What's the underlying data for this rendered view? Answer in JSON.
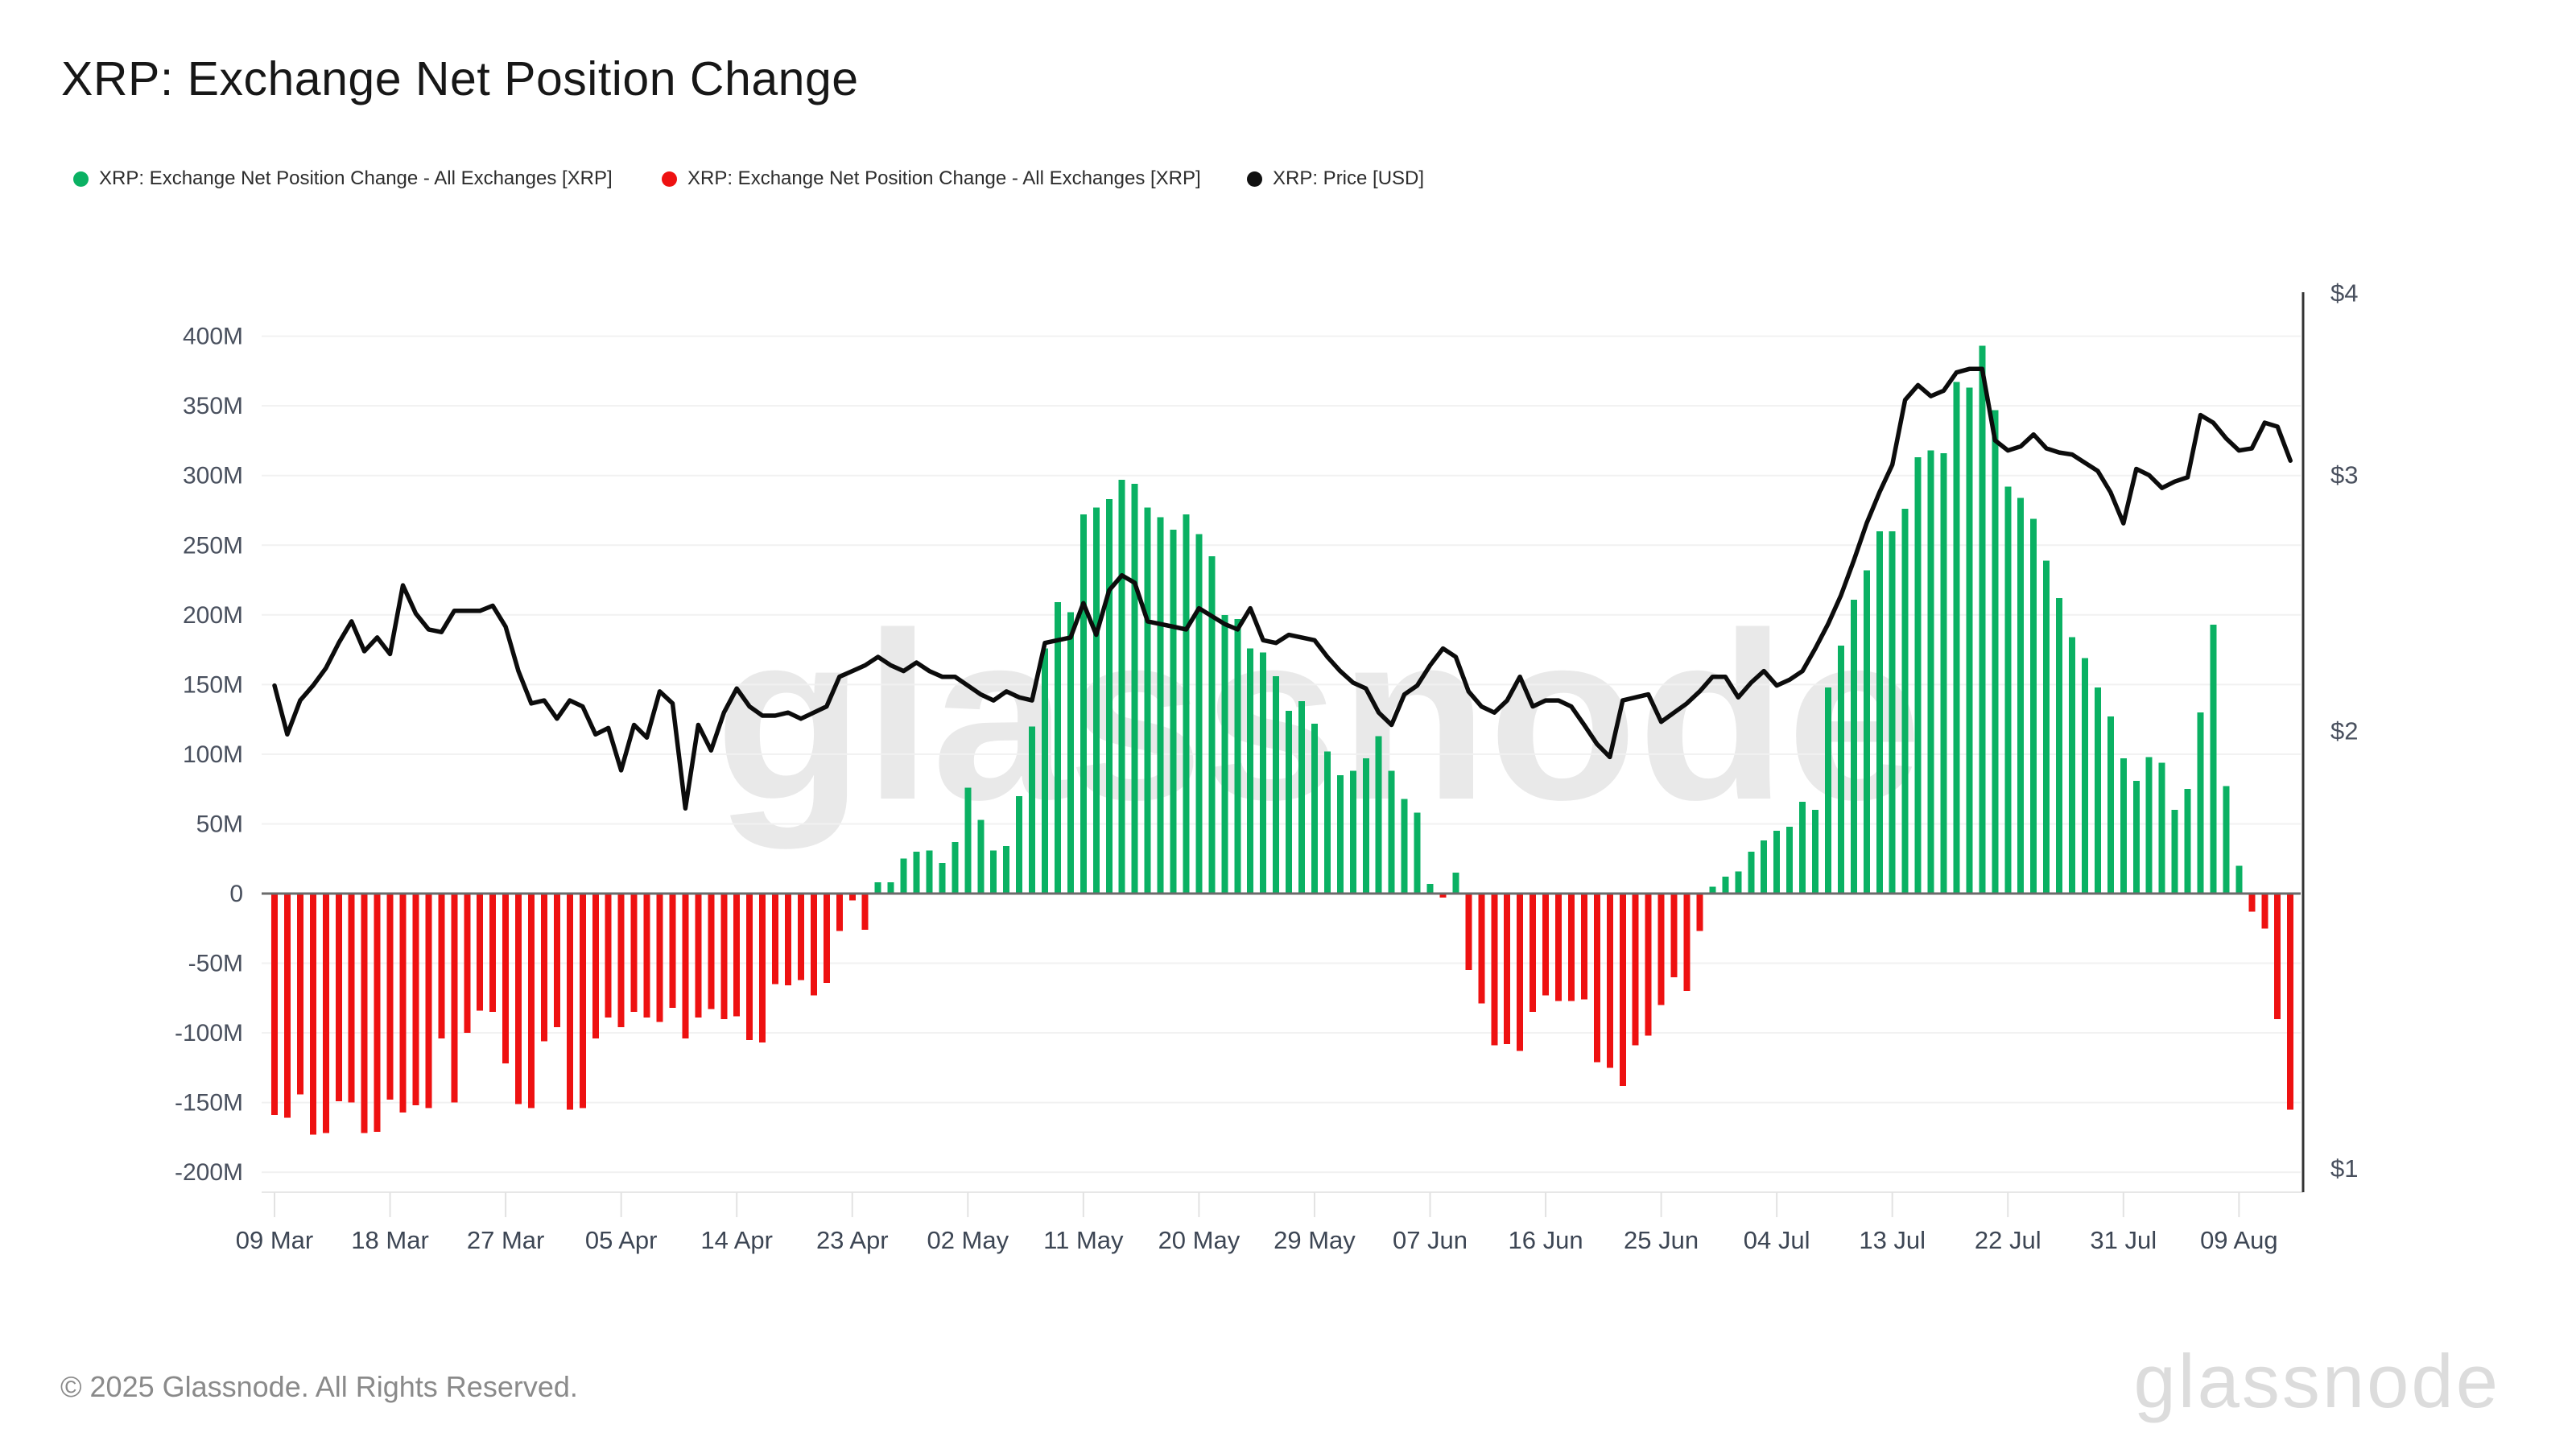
{
  "header": {
    "title": "XRP: Exchange Net Position Change"
  },
  "legend": {
    "items": [
      {
        "label": "XRP: Exchange Net Position Change - All Exchanges [XRP]",
        "color": "#0ab163",
        "marker": "dot-icon"
      },
      {
        "label": "XRP: Exchange Net Position Change - All Exchanges [XRP]",
        "color": "#ee1111",
        "marker": "dot-icon"
      },
      {
        "label": "XRP: Price [USD]",
        "color": "#111111",
        "marker": "dot-icon"
      }
    ]
  },
  "watermark": {
    "text": "glassnode"
  },
  "footer": {
    "copyright": "© 2025 Glassnode. All Rights Reserved.",
    "logo": "glassnode"
  },
  "chart_data": {
    "type": "bar",
    "title": "XRP: Exchange Net Position Change",
    "start_date": "09 Mar",
    "end_date": "13 Aug",
    "grid": true,
    "legend_position": "top-left",
    "x_tick_labels": [
      "09 Mar",
      "18 Mar",
      "27 Mar",
      "05 Apr",
      "14 Apr",
      "23 Apr",
      "02 May",
      "11 May",
      "20 May",
      "29 May",
      "07 Jun",
      "16 Jun",
      "25 Jun",
      "04 Jul",
      "13 Jul",
      "22 Jul",
      "31 Jul",
      "09 Aug"
    ],
    "x_tick_day_indices": [
      0,
      9,
      18,
      27,
      36,
      45,
      54,
      63,
      72,
      81,
      90,
      99,
      108,
      117,
      126,
      135,
      144,
      153
    ],
    "left_axis": {
      "unit": "XRP (millions)",
      "tick_labels": [
        "400M",
        "350M",
        "300M",
        "250M",
        "200M",
        "150M",
        "100M",
        "50M",
        "0",
        "-50M",
        "-100M",
        "-150M",
        "-200M"
      ],
      "tick_values": [
        400,
        350,
        300,
        250,
        200,
        150,
        100,
        50,
        0,
        -50,
        -100,
        -150,
        -200
      ],
      "lim": [
        -230,
        430
      ]
    },
    "right_axis": {
      "tick_labels": [
        "$4",
        "$3",
        "$2",
        "$1"
      ],
      "tick_values": [
        4,
        3,
        2,
        1
      ],
      "scale": "log",
      "lim": [
        1,
        4
      ]
    },
    "series": [
      {
        "name": "XRP: Exchange Net Position Change - All Exchanges [XRP]",
        "type": "bar",
        "unit": "M XRP",
        "color_positive": "#0ab163",
        "color_negative": "#ee1111",
        "values": [
          -159,
          -161,
          -144,
          -173,
          -172,
          -149,
          -150,
          -172,
          -171,
          -148,
          -157,
          -152,
          -154,
          -104,
          -150,
          -100,
          -84,
          -85,
          -122,
          -151,
          -154,
          -106,
          -96,
          -155,
          -154,
          -104,
          -89,
          -96,
          -85,
          -89,
          -92,
          -82,
          -104,
          -89,
          -83,
          -90,
          -88,
          -105,
          -107,
          -65,
          -66,
          -62,
          -73,
          -64,
          -27,
          -5,
          -26,
          8,
          8,
          25,
          30,
          31,
          22,
          37,
          76,
          53,
          31,
          34,
          70,
          120,
          176,
          209,
          202,
          272,
          277,
          283,
          297,
          294,
          277,
          270,
          261,
          272,
          258,
          242,
          200,
          197,
          176,
          173,
          156,
          131,
          138,
          122,
          102,
          85,
          88,
          97,
          113,
          88,
          68,
          58,
          7,
          -3,
          15,
          -55,
          -79,
          -109,
          -108,
          -113,
          -85,
          -73,
          -77,
          -77,
          -76,
          -121,
          -125,
          -138,
          -109,
          -102,
          -80,
          -60,
          -70,
          -27,
          5,
          12,
          16,
          30,
          38,
          45,
          48,
          66,
          60,
          148,
          178,
          211,
          232,
          260,
          260,
          276,
          313,
          318,
          316,
          367,
          363,
          393,
          347,
          292,
          284,
          269,
          239,
          212,
          184,
          169,
          148,
          127,
          97,
          81,
          98,
          94,
          60,
          75,
          130,
          193,
          77,
          20,
          -13,
          -25,
          -90,
          -155
        ]
      },
      {
        "name": "XRP: Price [USD]",
        "type": "line",
        "unit": "USD",
        "color": "#0c0c0c",
        "values": [
          2.15,
          1.99,
          2.1,
          2.15,
          2.21,
          2.3,
          2.38,
          2.27,
          2.32,
          2.26,
          2.52,
          2.41,
          2.35,
          2.34,
          2.42,
          2.42,
          2.42,
          2.44,
          2.36,
          2.2,
          2.09,
          2.1,
          2.04,
          2.1,
          2.08,
          1.99,
          2.01,
          1.88,
          2.02,
          1.98,
          2.13,
          2.09,
          1.77,
          2.02,
          1.94,
          2.06,
          2.14,
          2.08,
          2.05,
          2.05,
          2.06,
          2.04,
          2.06,
          2.08,
          2.18,
          2.2,
          2.22,
          2.25,
          2.22,
          2.2,
          2.23,
          2.2,
          2.18,
          2.18,
          2.15,
          2.12,
          2.1,
          2.13,
          2.11,
          2.1,
          2.3,
          2.31,
          2.32,
          2.45,
          2.33,
          2.5,
          2.56,
          2.53,
          2.38,
          2.37,
          2.36,
          2.35,
          2.43,
          2.4,
          2.37,
          2.35,
          2.43,
          2.31,
          2.3,
          2.33,
          2.32,
          2.31,
          2.25,
          2.2,
          2.16,
          2.14,
          2.06,
          2.02,
          2.12,
          2.15,
          2.22,
          2.28,
          2.25,
          2.13,
          2.08,
          2.06,
          2.1,
          2.18,
          2.08,
          2.1,
          2.1,
          2.08,
          2.02,
          1.96,
          1.92,
          2.1,
          2.11,
          2.12,
          2.03,
          2.06,
          2.09,
          2.13,
          2.18,
          2.18,
          2.11,
          2.16,
          2.2,
          2.15,
          2.17,
          2.2,
          2.28,
          2.37,
          2.48,
          2.62,
          2.78,
          2.92,
          3.05,
          3.38,
          3.46,
          3.4,
          3.43,
          3.53,
          3.55,
          3.55,
          3.17,
          3.12,
          3.14,
          3.2,
          3.13,
          3.11,
          3.1,
          3.06,
          3.02,
          2.92,
          2.78,
          3.03,
          3.0,
          2.94,
          2.97,
          2.99,
          3.3,
          3.26,
          3.18,
          3.12,
          3.13,
          3.26,
          3.24,
          3.07
        ]
      }
    ]
  }
}
